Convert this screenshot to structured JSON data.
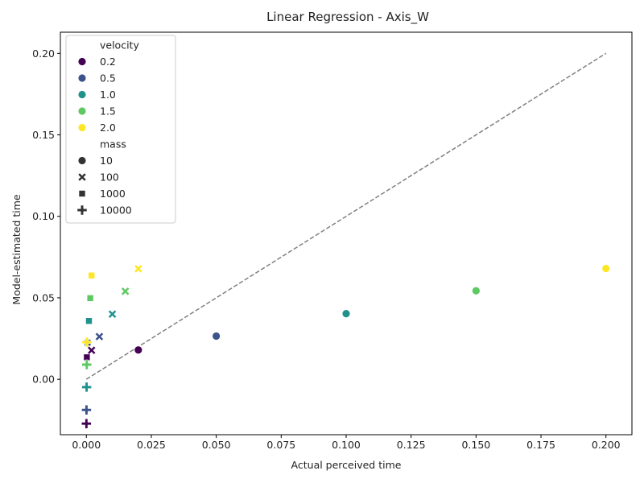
{
  "chart_data": {
    "type": "scatter",
    "title": "Linear Regression - Axis_W",
    "xlabel": "Actual perceived time",
    "ylabel": "Model-estimated time",
    "xlim": [
      -0.01,
      0.21
    ],
    "ylim": [
      -0.034,
      0.213
    ],
    "xticks": [
      "0.000",
      "0.025",
      "0.050",
      "0.075",
      "0.100",
      "0.125",
      "0.150",
      "0.175",
      "0.200"
    ],
    "xtick_values": [
      0.0,
      0.025,
      0.05,
      0.075,
      0.1,
      0.125,
      0.15,
      0.175,
      0.2
    ],
    "yticks": [
      "0.00",
      "0.05",
      "0.10",
      "0.15",
      "0.20"
    ],
    "ytick_values": [
      0.0,
      0.05,
      0.1,
      0.15,
      0.2
    ],
    "grid": false,
    "legend_position": "upper-left",
    "reference_line": {
      "style": "dashed",
      "color": "#808080",
      "from": [
        0.0,
        0.0
      ],
      "to": [
        0.2,
        0.2
      ]
    },
    "hue": {
      "title": "velocity",
      "levels": [
        {
          "label": "0.2",
          "color": "#440154"
        },
        {
          "label": "0.5",
          "color": "#3b528b"
        },
        {
          "label": "1.0",
          "color": "#21918c"
        },
        {
          "label": "1.5",
          "color": "#5ec962"
        },
        {
          "label": "2.0",
          "color": "#fde725"
        }
      ]
    },
    "style": {
      "title": "mass",
      "levels": [
        {
          "label": "10",
          "marker": "circle"
        },
        {
          "label": "100",
          "marker": "x"
        },
        {
          "label": "1000",
          "marker": "square"
        },
        {
          "label": "10000",
          "marker": "plus"
        }
      ]
    },
    "points": [
      {
        "x": 0.02,
        "y": 0.018,
        "velocity": "0.2",
        "mass": "10"
      },
      {
        "x": 0.05,
        "y": 0.0265,
        "velocity": "0.5",
        "mass": "10"
      },
      {
        "x": 0.1,
        "y": 0.0403,
        "velocity": "1.0",
        "mass": "10"
      },
      {
        "x": 0.15,
        "y": 0.0543,
        "velocity": "1.5",
        "mass": "10"
      },
      {
        "x": 0.2,
        "y": 0.068,
        "velocity": "2.0",
        "mass": "10"
      },
      {
        "x": 0.002,
        "y": 0.0178,
        "velocity": "0.2",
        "mass": "100"
      },
      {
        "x": 0.005,
        "y": 0.0262,
        "velocity": "0.5",
        "mass": "100"
      },
      {
        "x": 0.01,
        "y": 0.04,
        "velocity": "1.0",
        "mass": "100"
      },
      {
        "x": 0.015,
        "y": 0.054,
        "velocity": "1.5",
        "mass": "100"
      },
      {
        "x": 0.02,
        "y": 0.0678,
        "velocity": "2.0",
        "mass": "100"
      },
      {
        "x": 0.0002,
        "y": 0.0135,
        "velocity": "0.2",
        "mass": "1000"
      },
      {
        "x": 0.0005,
        "y": 0.0225,
        "velocity": "0.5",
        "mass": "1000"
      },
      {
        "x": 0.001,
        "y": 0.0358,
        "velocity": "1.0",
        "mass": "1000"
      },
      {
        "x": 0.0015,
        "y": 0.0498,
        "velocity": "1.5",
        "mass": "1000"
      },
      {
        "x": 0.002,
        "y": 0.0637,
        "velocity": "2.0",
        "mass": "1000"
      },
      {
        "x": 2e-05,
        "y": -0.0272,
        "velocity": "0.2",
        "mass": "10000"
      },
      {
        "x": 5e-05,
        "y": -0.0188,
        "velocity": "0.5",
        "mass": "10000"
      },
      {
        "x": 0.0001,
        "y": -0.0048,
        "velocity": "1.0",
        "mass": "10000"
      },
      {
        "x": 0.00015,
        "y": 0.009,
        "velocity": "1.5",
        "mass": "10000"
      },
      {
        "x": 0.0002,
        "y": 0.0228,
        "velocity": "2.0",
        "mass": "10000"
      }
    ]
  }
}
